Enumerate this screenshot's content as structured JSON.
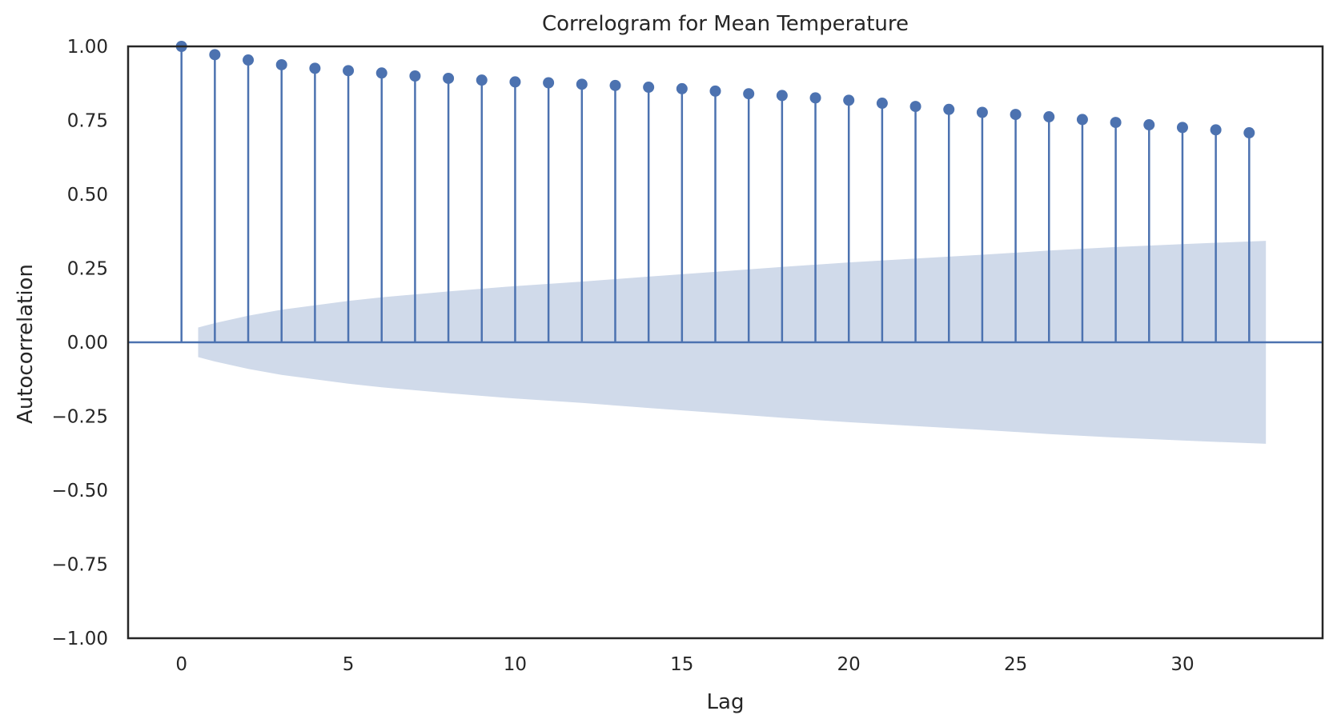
{
  "chart_data": {
    "type": "stem",
    "title": "Correlogram for Mean Temperature",
    "xlabel": "Lag",
    "ylabel": "Autocorrelation",
    "xlim": [
      -1.6,
      34.2
    ],
    "ylim": [
      -1.0,
      1.0
    ],
    "xticks": [
      0,
      5,
      10,
      15,
      20,
      25,
      30
    ],
    "yticks": [
      -1.0,
      -0.75,
      -0.5,
      -0.25,
      0.0,
      0.25,
      0.5,
      0.75,
      1.0
    ],
    "ytick_labels": [
      "−1.00",
      "−0.75",
      "−0.50",
      "−0.25",
      "0.00",
      "0.25",
      "0.50",
      "0.75",
      "1.00"
    ],
    "grid": false,
    "series": [
      {
        "lags": [
          0,
          1,
          2,
          3,
          4,
          5,
          6,
          7,
          8,
          9,
          10,
          11,
          12,
          13,
          14,
          15,
          16,
          17,
          18,
          19,
          20,
          21,
          22,
          23,
          24,
          25,
          26,
          27,
          28,
          29,
          30,
          31,
          32
        ],
        "values": [
          1.0,
          0.972,
          0.954,
          0.938,
          0.926,
          0.918,
          0.91,
          0.9,
          0.892,
          0.886,
          0.88,
          0.877,
          0.872,
          0.868,
          0.862,
          0.857,
          0.849,
          0.84,
          0.834,
          0.826,
          0.818,
          0.808,
          0.797,
          0.787,
          0.777,
          0.77,
          0.762,
          0.753,
          0.743,
          0.735,
          0.726,
          0.718,
          0.708
        ]
      }
    ],
    "confidence_band": {
      "lags": [
        0.5,
        1,
        2,
        3,
        4,
        5,
        6,
        8,
        10,
        12,
        14,
        16,
        18,
        20,
        22,
        24,
        26,
        28,
        30,
        32.5
      ],
      "upper": [
        0.05,
        0.065,
        0.09,
        0.11,
        0.125,
        0.14,
        0.152,
        0.172,
        0.19,
        0.205,
        0.222,
        0.238,
        0.255,
        0.27,
        0.283,
        0.296,
        0.31,
        0.322,
        0.332,
        0.343
      ]
    },
    "colors": {
      "stem": "#4c72b0",
      "band": "#d0daea",
      "zero_line": "#4c72b0",
      "axes": "#262626",
      "text": "#262626"
    }
  }
}
